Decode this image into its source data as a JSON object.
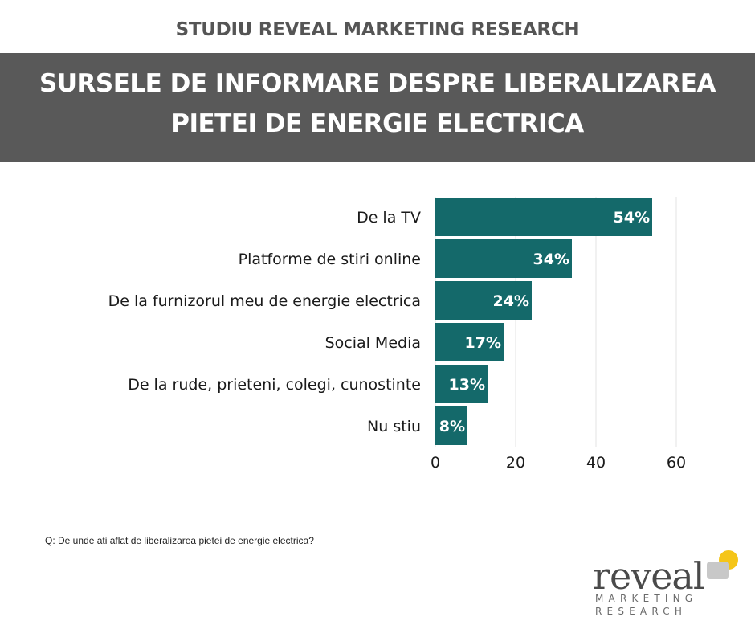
{
  "header": {
    "supertitle": "STUDIU REVEAL MARKETING RESEARCH",
    "title_line1": "SURSELE DE INFORMARE DESPRE LIBERALIZAREA",
    "title_line2": "PIETEI DE ENERGIE ELECTRICA"
  },
  "footer": {
    "question": "Q: De unde ati aflat de liberalizarea pietei de energie electrica?"
  },
  "logo": {
    "word": "reveal",
    "sub1": "MARKETING",
    "sub2": "RESEARCH",
    "accent_color": "#f5c518",
    "mark_color": "#c8c8c8"
  },
  "colors": {
    "bar": "#14696a",
    "band": "#595959",
    "grid": "#e3e3e3",
    "label": "#1a1a1a"
  },
  "chart_data": {
    "type": "bar",
    "orientation": "horizontal",
    "categories": [
      "De la TV",
      "Platforme de stiri online",
      "De la furnizorul meu de energie electrica",
      "Social Media",
      "De la rude, prieteni, colegi, cunostinte",
      "Nu stiu"
    ],
    "values": [
      54,
      34,
      24,
      17,
      13,
      8
    ],
    "value_labels": [
      "54%",
      "34%",
      "24%",
      "17%",
      "13%",
      "8%"
    ],
    "xlim": [
      0,
      60
    ],
    "xticks": [
      0,
      20,
      40,
      60
    ],
    "xtick_labels": [
      "0",
      "20",
      "40",
      "60"
    ],
    "grid": true,
    "legend": "none"
  }
}
